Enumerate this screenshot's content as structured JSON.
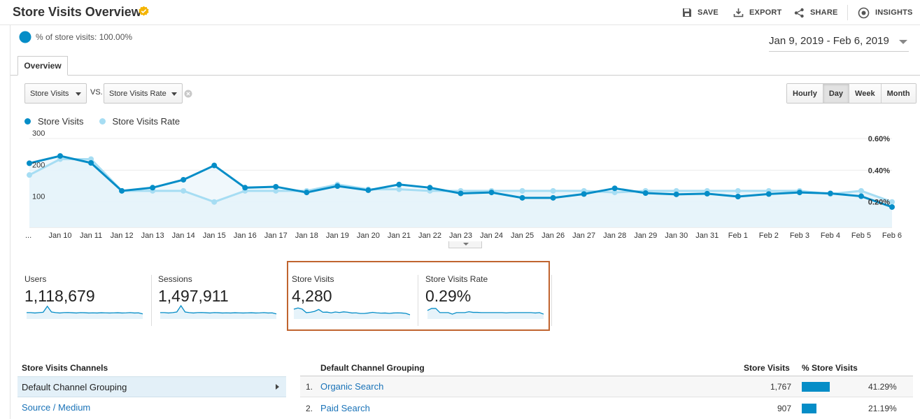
{
  "header": {
    "title": "Store Visits Overview",
    "actions": {
      "save": "SAVE",
      "export": "EXPORT",
      "share": "SHARE",
      "insights": "INSIGHTS"
    }
  },
  "segment": {
    "label": "% of store visits: 100.00%"
  },
  "date_range": "Jan 9, 2019 - Feb 6, 2019",
  "tabs": [
    {
      "label": "Overview"
    }
  ],
  "metric_selectors": {
    "primary": "Store Visits",
    "vs": "VS.",
    "secondary": "Store Visits Rate"
  },
  "granularity": {
    "options": [
      "Hourly",
      "Day",
      "Week",
      "Month"
    ],
    "selected": "Day"
  },
  "colors": {
    "series1": "#058dc7",
    "series2": "#a6ddf3",
    "area_fill": "#e6f3fa",
    "link": "#1a73b8",
    "highlight_border": "#c0642f"
  },
  "chart_data": {
    "type": "line",
    "categories": [
      "...",
      "Jan 10",
      "Jan 11",
      "Jan 12",
      "Jan 13",
      "Jan 14",
      "Jan 15",
      "Jan 16",
      "Jan 17",
      "Jan 18",
      "Jan 19",
      "Jan 20",
      "Jan 21",
      "Jan 22",
      "Jan 23",
      "Jan 24",
      "Jan 25",
      "Jan 26",
      "Jan 27",
      "Jan 28",
      "Jan 29",
      "Jan 30",
      "Jan 31",
      "Feb 1",
      "Feb 2",
      "Feb 3",
      "Feb 4",
      "Feb 5",
      "Feb 6"
    ],
    "series": [
      {
        "name": "Store Visits",
        "axis": "left",
        "values": [
          222,
          245,
          223,
          135,
          145,
          170,
          215,
          145,
          148,
          130,
          150,
          137,
          155,
          145,
          127,
          130,
          113,
          113,
          125,
          143,
          128,
          124,
          126,
          117,
          125,
          130,
          127,
          118,
          84
        ]
      },
      {
        "name": "Store Visits Rate",
        "axis": "right",
        "values": [
          0.37,
          0.47,
          0.47,
          0.27,
          0.27,
          0.27,
          0.2,
          0.27,
          0.27,
          0.27,
          0.31,
          0.28,
          0.28,
          0.27,
          0.27,
          0.27,
          0.27,
          0.27,
          0.27,
          0.26,
          0.27,
          0.27,
          0.27,
          0.27,
          0.27,
          0.27,
          0.25,
          0.27,
          0.2
        ]
      }
    ],
    "y_left": {
      "ticks": [
        "100",
        "200",
        "300"
      ],
      "tick_values": [
        100,
        200,
        300
      ],
      "lim": [
        20,
        300
      ]
    },
    "y_right": {
      "ticks": [
        "0.20%",
        "0.40%",
        "0.60%"
      ],
      "tick_values": [
        0.2,
        0.4,
        0.6
      ],
      "lim": [
        0.04,
        0.6
      ]
    },
    "grid": true,
    "legend": "top-left"
  },
  "scorecards": [
    {
      "label": "Users",
      "value": "1,118,679",
      "spark": [
        0.45,
        0.45,
        0.42,
        0.45,
        0.48,
        0.95,
        0.5,
        0.45,
        0.42,
        0.45,
        0.46,
        0.44,
        0.42,
        0.45,
        0.44,
        0.42,
        0.43,
        0.42,
        0.44,
        0.43,
        0.42,
        0.43,
        0.44,
        0.42,
        0.43,
        0.45,
        0.42,
        0.43,
        0.35
      ]
    },
    {
      "label": "Sessions",
      "value": "1,497,911",
      "spark": [
        0.45,
        0.45,
        0.42,
        0.45,
        0.5,
        1.0,
        0.5,
        0.45,
        0.42,
        0.45,
        0.46,
        0.44,
        0.42,
        0.45,
        0.44,
        0.42,
        0.43,
        0.42,
        0.44,
        0.43,
        0.42,
        0.43,
        0.44,
        0.42,
        0.43,
        0.45,
        0.42,
        0.43,
        0.35
      ]
    },
    {
      "label": "Store Visits",
      "value": "4,280",
      "spark": [
        0.72,
        0.82,
        0.73,
        0.45,
        0.48,
        0.55,
        0.7,
        0.48,
        0.49,
        0.43,
        0.5,
        0.46,
        0.51,
        0.48,
        0.42,
        0.43,
        0.38,
        0.38,
        0.42,
        0.47,
        0.43,
        0.41,
        0.42,
        0.39,
        0.42,
        0.43,
        0.42,
        0.39,
        0.28
      ]
    },
    {
      "label": "Store Visits Rate",
      "value": "0.29%",
      "spark": [
        0.62,
        0.78,
        0.78,
        0.45,
        0.45,
        0.45,
        0.33,
        0.45,
        0.45,
        0.45,
        0.52,
        0.47,
        0.47,
        0.45,
        0.45,
        0.45,
        0.45,
        0.45,
        0.45,
        0.43,
        0.45,
        0.45,
        0.45,
        0.45,
        0.45,
        0.45,
        0.42,
        0.45,
        0.33
      ]
    }
  ],
  "channels_panel": {
    "title": "Store Visits Channels",
    "items": [
      {
        "label": "Default Channel Grouping",
        "selected": true
      },
      {
        "label": "Source / Medium",
        "selected": false
      }
    ]
  },
  "channels_table": {
    "headers": {
      "dimension": "Default Channel Grouping",
      "metric": "Store Visits",
      "percent": "% Store Visits"
    },
    "rows": [
      {
        "rank": "1.",
        "name": "Organic Search",
        "value": "1,767",
        "percent": "41.29%",
        "share": 0.4129
      },
      {
        "rank": "2.",
        "name": "Paid Search",
        "value": "907",
        "percent": "21.19%",
        "share": 0.2119
      }
    ]
  }
}
